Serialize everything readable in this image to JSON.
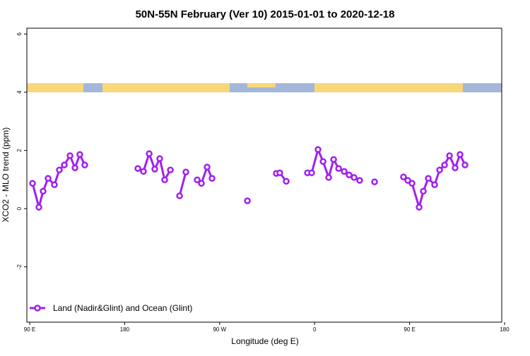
{
  "chart_data": {
    "type": "line",
    "title": "50N-55N February (Ver 10)   2015-01-01 to 2020-12-18",
    "x_label": "Longitude (deg E)",
    "y_label": "XCO2 - MLO trend (ppm)",
    "xlim": [
      87.3,
      537.3
    ],
    "ylim": [
      -3.9,
      6.2
    ],
    "xticks": [
      {
        "value": 90,
        "label": "90 E"
      },
      {
        "value": 180,
        "label": "180"
      },
      {
        "value": 270,
        "label": "90 W"
      },
      {
        "value": 360,
        "label": "0"
      },
      {
        "value": 450,
        "label": "90 E"
      },
      {
        "value": 540,
        "label": "180"
      }
    ],
    "yticks": [
      6,
      4,
      2,
      0,
      -2
    ],
    "legend": "bottom-left",
    "series": [
      {
        "name": "Land (Nadir&Glint) and Ocean (Glint)",
        "color": "#a020f0",
        "x": [
          92.7,
          98.7,
          102.7,
          107.4,
          113.4,
          118.1,
          122.8,
          128.2,
          132.9,
          137.5,
          142.2,
          null,
          192.5,
          197.8,
          203.2,
          208.5,
          213.2,
          217.9,
          223.3,
          null,
          232.0,
          238.0,
          null,
          248.7,
          252.7,
          258.1,
          262.8,
          null,
          296.3,
          null,
          323.7,
          327.0,
          333.1,
          null,
          353.2,
          357.2,
          363.2,
          368.0,
          373.3,
          378.0,
          382.7,
          388.0,
          392.7,
          397.4,
          402.7,
          null,
          416.8,
          null,
          444.2,
          448.3,
          452.3,
          459.0,
          463.0,
          467.7,
          473.7,
          478.4,
          483.1,
          487.8,
          493.1,
          497.8,
          502.5
        ],
        "values": [
          0.87,
          0.05,
          0.6,
          1.04,
          0.82,
          1.33,
          1.5,
          1.82,
          1.4,
          1.86,
          1.5,
          null,
          1.38,
          1.28,
          1.89,
          1.36,
          1.72,
          0.99,
          1.33,
          null,
          0.44,
          1.26,
          null,
          0.99,
          0.87,
          1.43,
          1.04,
          null,
          0.27,
          null,
          1.21,
          1.23,
          0.94,
          null,
          1.23,
          1.23,
          2.03,
          1.62,
          1.07,
          1.69,
          1.38,
          1.28,
          1.16,
          1.07,
          0.97,
          null,
          0.92,
          null,
          1.09,
          0.97,
          0.87,
          0.05,
          0.6,
          1.04,
          0.82,
          1.33,
          1.5,
          1.82,
          1.4,
          1.86,
          1.5
        ]
      }
    ]
  }
}
